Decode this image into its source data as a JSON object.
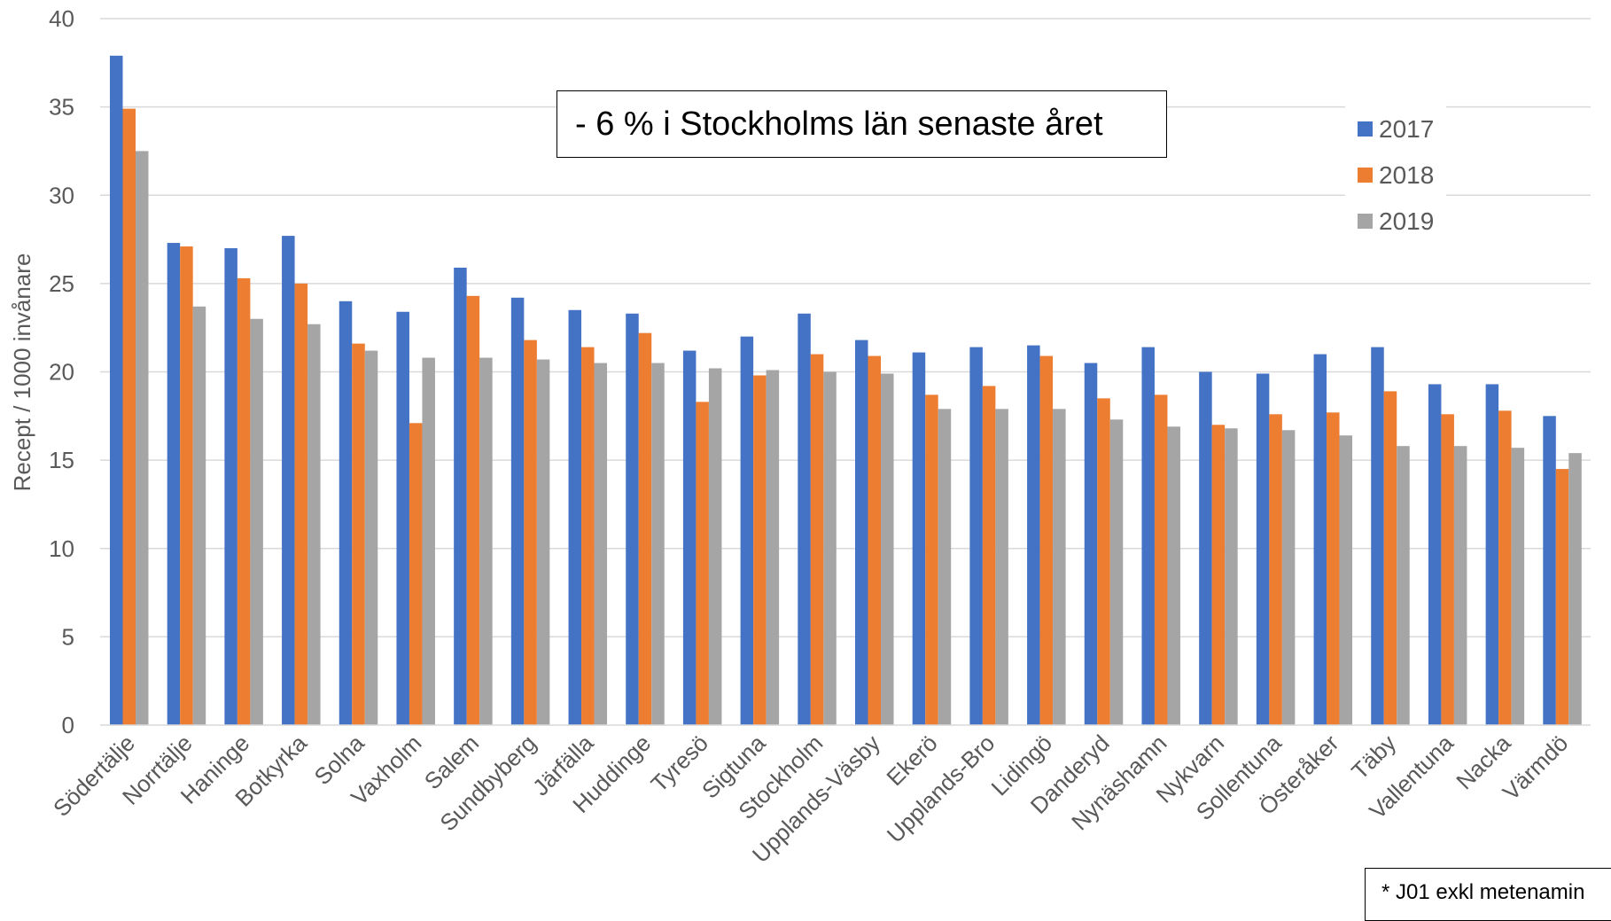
{
  "chart_data": {
    "type": "bar",
    "title": "",
    "xlabel": "",
    "ylabel": "Recept / 1000 invånare",
    "ylim": [
      0,
      40
    ],
    "yticks": [
      0,
      5,
      10,
      15,
      20,
      25,
      30,
      35,
      40
    ],
    "grid": true,
    "legend_position": "top-right",
    "categories": [
      "Södertälje",
      "Norrtälje",
      "Haninge",
      "Botkyrka",
      "Solna",
      "Vaxholm",
      "Salem",
      "Sundbyberg",
      "Järfälla",
      "Huddinge",
      "Tyresö",
      "Sigtuna",
      "Stockholm",
      "Upplands-Väsby",
      "Ekerö",
      "Upplands-Bro",
      "Lidingö",
      "Danderyd",
      "Nynäshamn",
      "Nykvarn",
      "Sollentuna",
      "Österåker",
      "Täby",
      "Vallentuna",
      "Nacka",
      "Värmdö"
    ],
    "series": [
      {
        "name": "2017",
        "color": "#4472C4",
        "values": [
          37.9,
          27.3,
          27.0,
          27.7,
          24.0,
          23.4,
          25.9,
          24.2,
          23.5,
          23.3,
          21.2,
          22.0,
          23.3,
          21.8,
          21.1,
          21.4,
          21.5,
          20.5,
          21.4,
          20.0,
          19.9,
          21.0,
          21.4,
          19.3,
          19.3,
          17.5
        ]
      },
      {
        "name": "2018",
        "color": "#ED7D31",
        "values": [
          34.9,
          27.1,
          25.3,
          25.0,
          21.6,
          17.1,
          24.3,
          21.8,
          21.4,
          22.2,
          18.3,
          19.8,
          21.0,
          20.9,
          18.7,
          19.2,
          20.9,
          18.5,
          18.7,
          17.0,
          17.6,
          17.7,
          18.9,
          17.6,
          17.8,
          14.5
        ]
      },
      {
        "name": "2019",
        "color": "#A5A5A5",
        "values": [
          32.5,
          23.7,
          23.0,
          22.7,
          21.2,
          20.8,
          20.8,
          20.7,
          20.5,
          20.5,
          20.2,
          20.1,
          20.0,
          19.9,
          17.9,
          17.9,
          17.9,
          17.3,
          16.9,
          16.8,
          16.7,
          16.4,
          15.8,
          15.8,
          15.7,
          15.4
        ]
      }
    ],
    "annotation": "- 6 % i Stockholms län senaste året",
    "footnote": "* J01 exkl metenamin"
  }
}
